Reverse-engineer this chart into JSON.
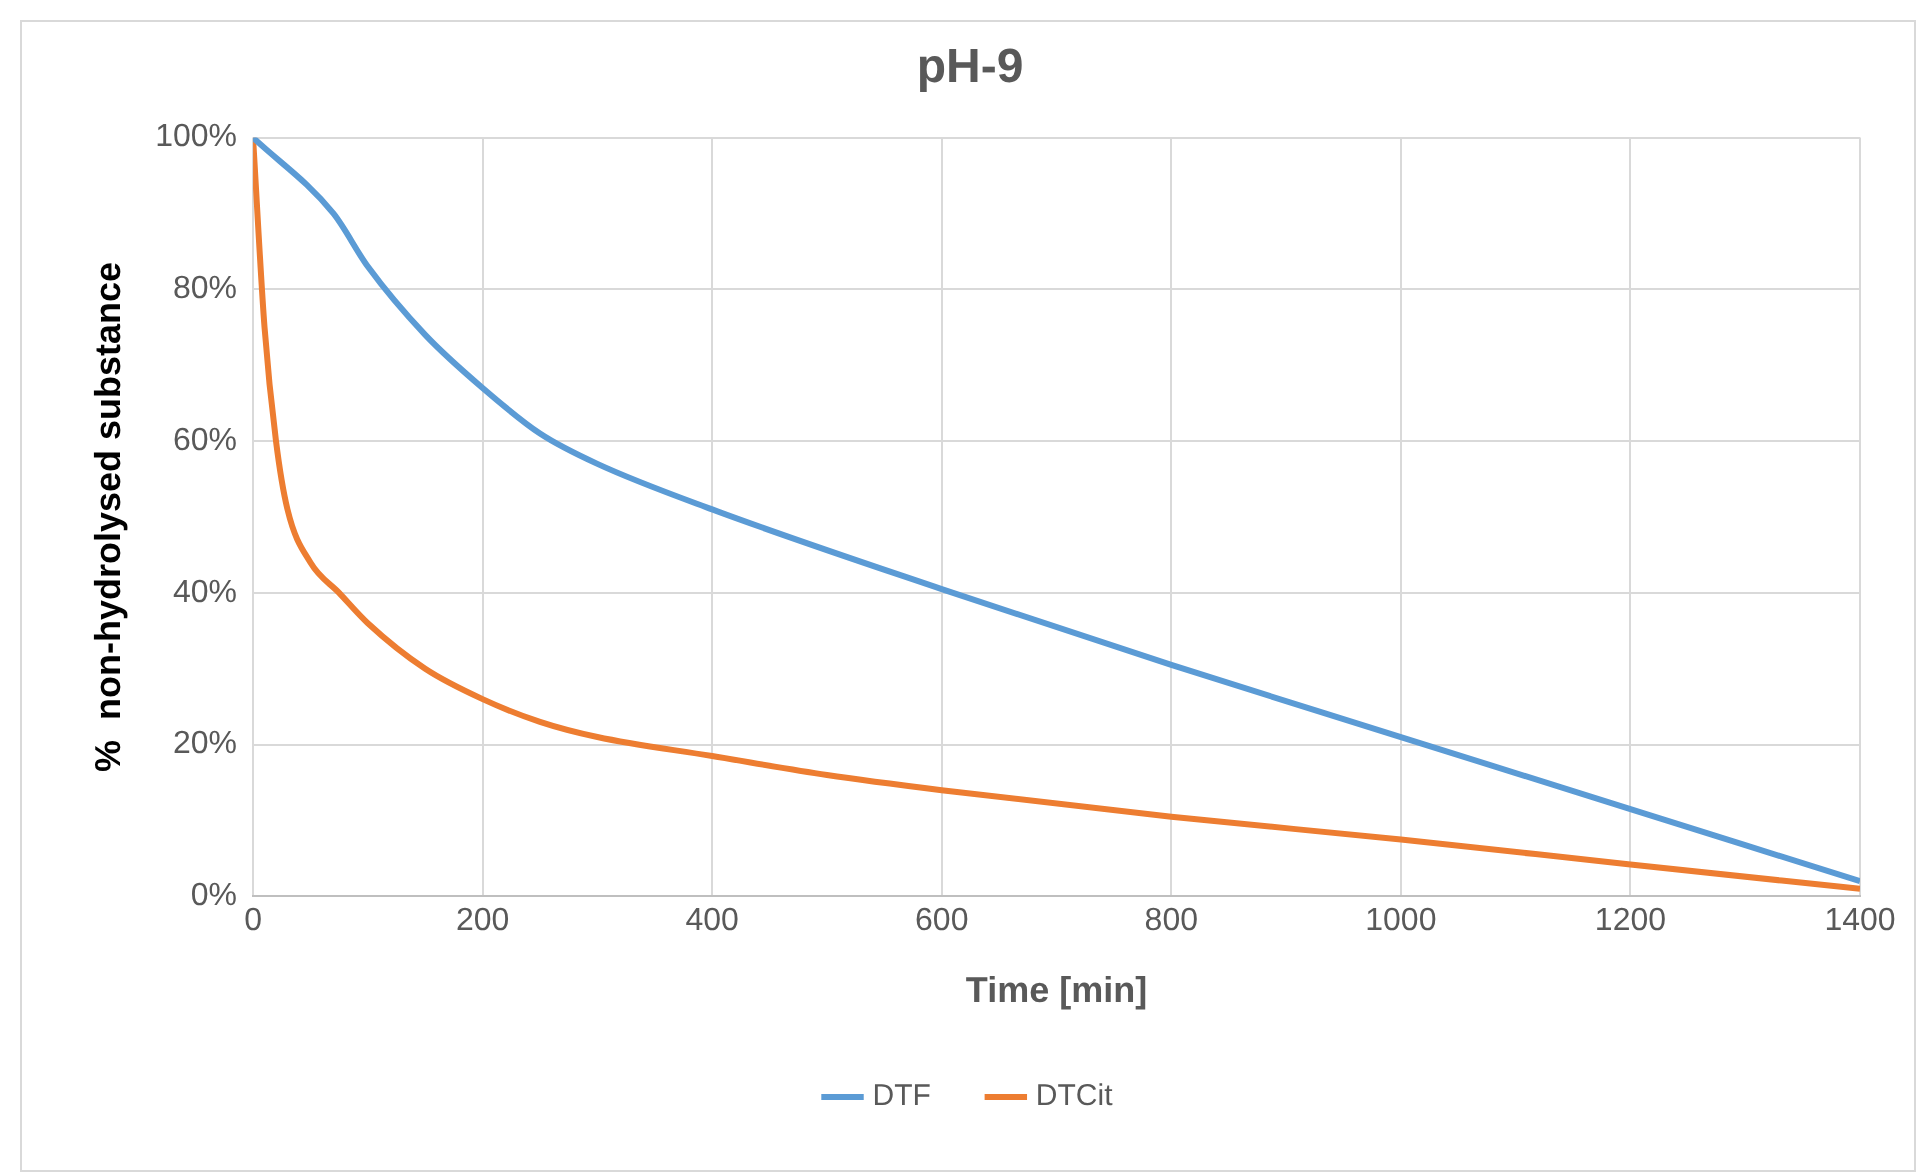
{
  "chart_data": {
    "type": "line",
    "title": "pH-9",
    "xlabel": "Time [min]",
    "ylabel": "%  non-hydrolysed substance",
    "xlim": [
      0,
      1400
    ],
    "xticks": [
      0,
      200,
      400,
      600,
      800,
      1000,
      1200,
      1400
    ],
    "ylim": [
      0,
      100
    ],
    "yticks": [
      {
        "value": 0,
        "label": "0%"
      },
      {
        "value": 20,
        "label": "20%"
      },
      {
        "value": 40,
        "label": "40%"
      },
      {
        "value": 60,
        "label": "60%"
      },
      {
        "value": 80,
        "label": "80%"
      },
      {
        "value": 100,
        "label": "100%"
      }
    ],
    "grid": true,
    "legend": "bottom",
    "marker": "none",
    "line_style": "solid",
    "series": [
      {
        "name": "DTF",
        "color": "#5b9bd5",
        "x": [
          0,
          70,
          100,
          150,
          200,
          250,
          300,
          400,
          600,
          800,
          1000,
          1200,
          1400
        ],
        "values": [
          100,
          90,
          83,
          74,
          67,
          61,
          57,
          51,
          40.5,
          30.5,
          21,
          11.5,
          2
        ]
      },
      {
        "name": "DTCit",
        "color": "#ed7d31",
        "x": [
          0,
          10,
          20,
          30,
          50,
          75,
          100,
          150,
          200,
          250,
          300,
          400,
          500,
          600,
          800,
          1000,
          1200,
          1400
        ],
        "values": [
          100,
          75,
          60,
          51,
          44,
          40,
          36,
          30,
          26,
          23,
          21,
          18.5,
          16,
          14,
          10.5,
          7.5,
          4.2,
          1
        ]
      }
    ]
  }
}
